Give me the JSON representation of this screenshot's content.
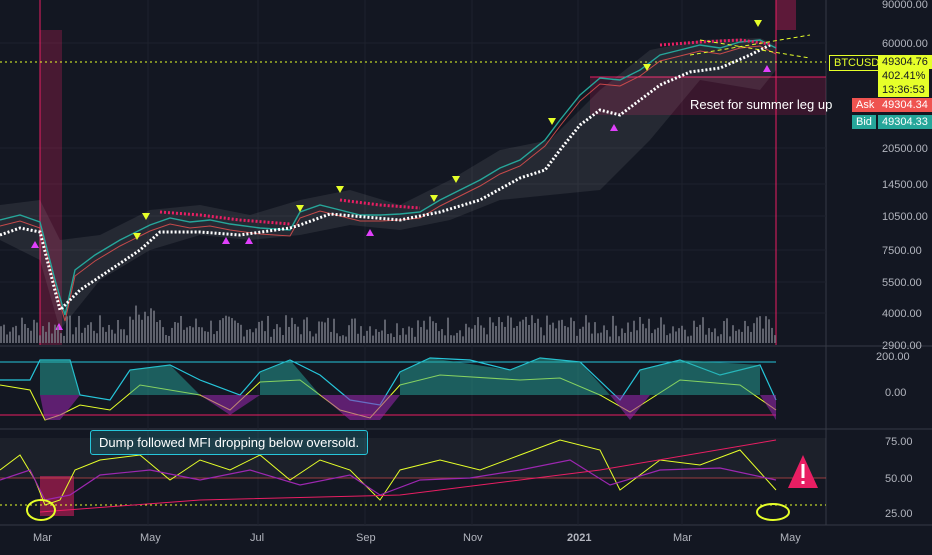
{
  "symbol": "BTCUSDT",
  "price_tag": {
    "symbol": "BTCUSDT",
    "price": "49304.76",
    "change": "402.41%",
    "countdown": "13:36:53"
  },
  "ask": {
    "label": "Ask",
    "value": "49304.34"
  },
  "bid": {
    "label": "Bid",
    "value": "49304.33"
  },
  "price_axis": [
    "90000.00",
    "60000.00",
    "20500.00",
    "14500.00",
    "10500.00",
    "7500.00",
    "5500.00",
    "4000.00",
    "2900.00"
  ],
  "osc1_axis": [
    "200.00",
    "0.00"
  ],
  "osc2_axis": [
    "75.00",
    "50.00",
    "25.00"
  ],
  "time_axis": [
    "Mar",
    "May",
    "Jul",
    "Sep",
    "Nov",
    "2021",
    "Mar",
    "May"
  ],
  "annotations": {
    "mfi_note": "Dump followed MFI dropping below oversold.",
    "reset_note": "Reset for summer leg up"
  },
  "colors": {
    "background": "#131722",
    "price_tag": "#e6ff29",
    "ask": "#ef5350",
    "bid": "#26a69a",
    "highlight": "#e91e63",
    "volume": "#787b86"
  }
}
